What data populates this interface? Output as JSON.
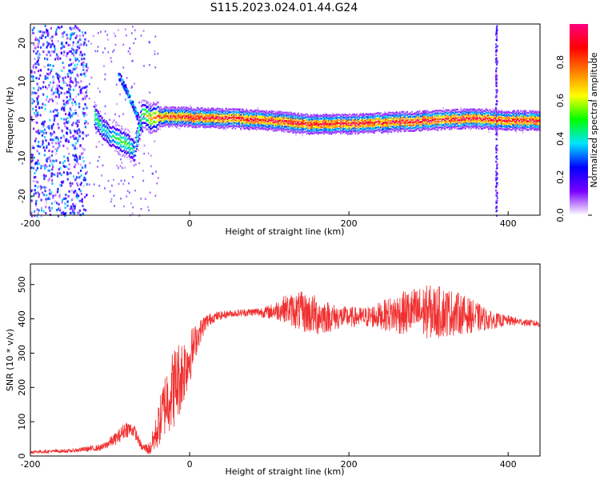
{
  "figure": {
    "title": "S115.2023.024.01.44.G24"
  },
  "chart_data": [
    {
      "type": "heatmap",
      "title": "S115.2023.024.01.44.G24",
      "xlabel": "Height of straight line (km)",
      "ylabel": "Frequency (Hz)",
      "xlim": [
        -200,
        440
      ],
      "ylim": [
        -25,
        25
      ],
      "xticks": [
        -200,
        0,
        200,
        400
      ],
      "xtick_labels": [
        "-200",
        "0",
        "200",
        "400"
      ],
      "yticks": [
        -20,
        -10,
        0,
        10,
        20
      ],
      "ytick_labels": [
        "-20",
        "-10",
        "0",
        "10",
        "20"
      ],
      "colorbar": {
        "label": "Normalized spectral amplitude",
        "range": [
          0,
          1
        ],
        "ticks": [
          0.0,
          0.2,
          0.4,
          0.6,
          0.8
        ],
        "tick_labels": [
          "0.0",
          "0.2",
          "0.4",
          "0.6",
          "0.8"
        ],
        "colormap": [
          "#ffffff",
          "#7a00ff",
          "#0000ff",
          "#00e5ff",
          "#00ff00",
          "#ffff00",
          "#ff7f00",
          "#ff0000",
          "#ff007f"
        ]
      },
      "ridge": {
        "description_points_x": [
          -120,
          -110,
          -100,
          -90,
          -80,
          -70,
          -60,
          -50,
          -40,
          0,
          50,
          100,
          150,
          200,
          250,
          300,
          350,
          400,
          440
        ],
        "frequency_hz": [
          1,
          -2,
          -4,
          -5,
          -6,
          -8,
          2,
          0.5,
          1,
          0.8,
          0.5,
          0,
          -1,
          -1,
          -0.5,
          0,
          0.5,
          0,
          0
        ],
        "peak_amplitude": [
          0.5,
          0.4,
          0.4,
          0.5,
          0.5,
          0.4,
          0.5,
          0.7,
          0.8,
          0.9,
          0.9,
          0.9,
          0.9,
          0.9,
          0.9,
          0.9,
          0.9,
          0.9,
          0.9
        ]
      },
      "secondary_track": {
        "x": [
          -90,
          -80,
          -70,
          -60
        ],
        "frequency_hz": [
          12,
          8,
          3,
          -2
        ]
      },
      "noise_region_x": [
        -200,
        -130
      ],
      "vertical_stripe_x": 385
    },
    {
      "type": "line",
      "xlabel": "Height of straight line (km)",
      "ylabel": "SNR (10 * v/v)",
      "color": "#f03030",
      "xlim": [
        -200,
        440
      ],
      "ylim": [
        0,
        560
      ],
      "xticks": [
        -200,
        0,
        200,
        400
      ],
      "xtick_labels": [
        "-200",
        "0",
        "200",
        "400"
      ],
      "yticks": [
        0,
        100,
        200,
        300,
        400,
        500
      ],
      "ytick_labels": [
        "0",
        "100",
        "200",
        "300",
        "400",
        "500"
      ],
      "envelope_x": [
        -200,
        -150,
        -110,
        -90,
        -80,
        -70,
        -60,
        -50,
        -40,
        -30,
        -20,
        -10,
        0,
        10,
        20,
        30,
        50,
        80,
        100,
        120,
        140,
        160,
        180,
        200,
        220,
        240,
        260,
        280,
        300,
        320,
        340,
        360,
        380,
        400,
        420,
        440
      ],
      "envelope_mean": [
        12,
        15,
        25,
        55,
        80,
        75,
        25,
        20,
        80,
        160,
        200,
        240,
        290,
        350,
        390,
        405,
        415,
        420,
        420,
        430,
        420,
        410,
        405,
        405,
        405,
        410,
        415,
        420,
        420,
        420,
        415,
        405,
        395,
        395,
        390,
        385
      ],
      "envelope_amplitude": [
        5,
        5,
        10,
        20,
        25,
        20,
        10,
        20,
        60,
        100,
        120,
        110,
        80,
        40,
        25,
        15,
        10,
        12,
        20,
        40,
        60,
        60,
        40,
        30,
        30,
        40,
        60,
        70,
        80,
        75,
        60,
        45,
        25,
        15,
        10,
        10
      ]
    }
  ]
}
